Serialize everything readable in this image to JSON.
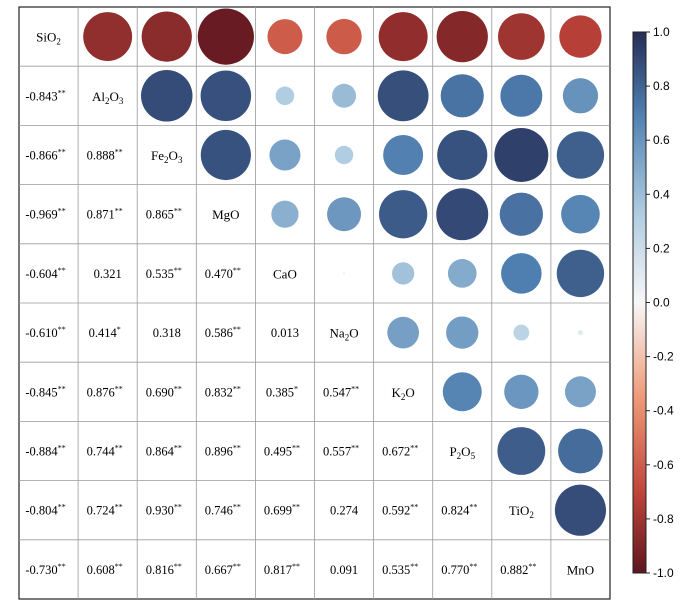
{
  "chart_data": {
    "type": "heatmap",
    "title": "",
    "variables": [
      {
        "base": "SiO",
        "sub": "2",
        "rest": ""
      },
      {
        "base": "Al",
        "sub": "2",
        "rest": "O",
        "sub2": "3"
      },
      {
        "base": "Fe",
        "sub": "2",
        "rest": "O",
        "sub2": "3"
      },
      {
        "base": "MgO",
        "sub": "",
        "rest": ""
      },
      {
        "base": "CaO",
        "sub": "",
        "rest": ""
      },
      {
        "base": "Na",
        "sub": "2",
        "rest": "O"
      },
      {
        "base": "K",
        "sub": "2",
        "rest": "O"
      },
      {
        "base": "P",
        "sub": "2",
        "rest": "O",
        "sub2": "5"
      },
      {
        "base": "TiO",
        "sub": "2",
        "rest": ""
      },
      {
        "base": "MnO",
        "sub": "",
        "rest": ""
      }
    ],
    "lower_triangle_labels": [
      [],
      [
        "-0.843**"
      ],
      [
        "-0.866**",
        "0.888**"
      ],
      [
        "-0.969**",
        "0.871**",
        "0.865**"
      ],
      [
        "-0.604**",
        "0.321",
        "0.535**",
        "0.470**"
      ],
      [
        "-0.610**",
        "0.414*",
        "0.318",
        "0.586**",
        "0.013"
      ],
      [
        "-0.845**",
        "0.876**",
        "0.690**",
        "0.832**",
        "0.385*",
        "0.547**"
      ],
      [
        "-0.884**",
        "0.744**",
        "0.864**",
        "0.896**",
        "0.495**",
        "0.557**",
        "0.672**"
      ],
      [
        "-0.804**",
        "0.724**",
        "0.930**",
        "0.746**",
        "0.699**",
        "0.274",
        "0.592**",
        "0.824**"
      ],
      [
        "-0.730**",
        "0.608**",
        "0.816**",
        "0.667**",
        "0.817**",
        "0.091",
        "0.535**",
        "0.770**",
        "0.882**"
      ]
    ],
    "colorbar": {
      "range": [
        -1.0,
        1.0
      ],
      "ticks": [
        "1.0",
        "0.8",
        "0.6",
        "0.4",
        "0.2",
        "0.0",
        "-0.2",
        "-0.4",
        "-0.6",
        "-0.8",
        "-1.0"
      ],
      "colors": {
        "neg_strong": "#5e1620",
        "neg_mid": "#c0453a",
        "neg_light": "#ee9a78",
        "zero": "#f7f7f7",
        "pos_light": "#aac9df",
        "pos_mid": "#4f7fb0",
        "pos_strong": "#252d56"
      }
    }
  }
}
